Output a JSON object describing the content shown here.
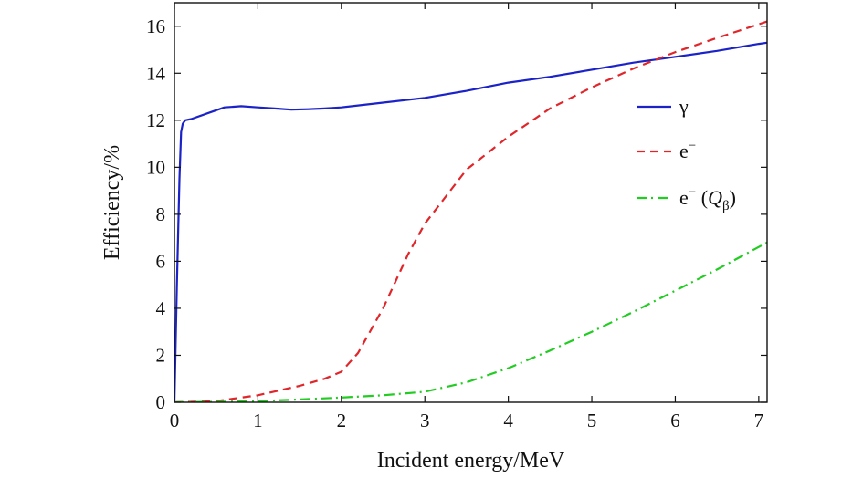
{
  "chart_data": {
    "type": "line",
    "xlabel": "Incident energy/MeV",
    "ylabel": "Efficiency/%",
    "xlim": [
      0,
      7.1
    ],
    "ylim": [
      0,
      17
    ],
    "xticks": [
      0,
      1,
      2,
      3,
      4,
      5,
      6,
      7
    ],
    "yticks": [
      0,
      2,
      4,
      6,
      8,
      10,
      12,
      14,
      16
    ],
    "grid": false,
    "legend_position": "right",
    "series": [
      {
        "name": "γ",
        "color": "#1a22c8",
        "dash": "solid",
        "x": [
          0,
          0.03,
          0.06,
          0.08,
          0.1,
          0.13,
          0.2,
          0.4,
          0.6,
          0.8,
          1.0,
          1.2,
          1.4,
          1.6,
          1.8,
          2.0,
          2.5,
          3.0,
          3.5,
          4.0,
          4.5,
          5.0,
          5.5,
          6.0,
          6.5,
          7.0,
          7.1
        ],
        "y": [
          0,
          5.0,
          9.5,
          11.5,
          11.85,
          12.0,
          12.05,
          12.3,
          12.55,
          12.6,
          12.55,
          12.5,
          12.45,
          12.47,
          12.5,
          12.55,
          12.75,
          12.95,
          13.25,
          13.6,
          13.85,
          14.15,
          14.45,
          14.7,
          14.95,
          15.25,
          15.3
        ]
      },
      {
        "name": "e",
        "name_sup": "−",
        "color": "#e0262a",
        "dash": "dashed",
        "x": [
          0,
          0.5,
          1.0,
          1.5,
          1.8,
          2.0,
          2.2,
          2.5,
          2.8,
          3.0,
          3.5,
          4.0,
          4.5,
          5.0,
          5.5,
          6.0,
          6.5,
          7.1
        ],
        "y": [
          0,
          0.05,
          0.3,
          0.7,
          1.0,
          1.3,
          2.1,
          4.0,
          6.3,
          7.6,
          9.9,
          11.3,
          12.5,
          13.4,
          14.2,
          14.9,
          15.5,
          16.2
        ]
      },
      {
        "name": "e",
        "name_sup": "−",
        "name_paren": "(Q",
        "name_sub": "β",
        "name_close": ")",
        "color": "#22cc22",
        "dash": "dashdot",
        "x": [
          0,
          0.5,
          1.0,
          1.5,
          2.0,
          2.5,
          3.0,
          3.5,
          4.0,
          4.5,
          5.0,
          5.5,
          6.0,
          6.5,
          7.1
        ],
        "y": [
          0,
          0.02,
          0.05,
          0.12,
          0.2,
          0.3,
          0.45,
          0.85,
          1.45,
          2.2,
          3.0,
          3.85,
          4.75,
          5.65,
          6.8
        ]
      }
    ]
  }
}
